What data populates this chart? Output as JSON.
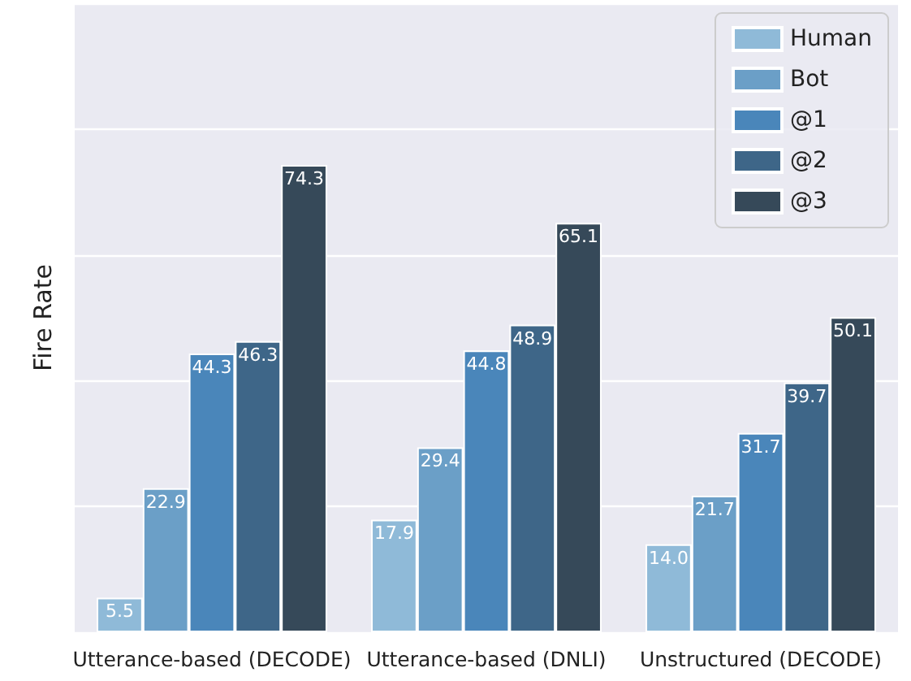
{
  "chart_data": {
    "type": "bar",
    "ylabel": "Fire Rate",
    "categories": [
      "Utterance-based (DECODE)",
      "Utterance-based (DNLI)",
      "Unstructured (DECODE)"
    ],
    "series": [
      {
        "name": "Human",
        "color": "#8fbad8",
        "values": [
          5.5,
          17.9,
          14.0
        ],
        "value_labels": [
          "5.5",
          "17.9",
          "14.0"
        ]
      },
      {
        "name": "Bot",
        "color": "#6b9fc7",
        "values": [
          22.9,
          29.4,
          21.7
        ]
      },
      {
        "name": "@1",
        "color": "#4a86ba",
        "values": [
          44.3,
          44.8,
          31.7
        ]
      },
      {
        "name": "@2",
        "color": "#3e6688",
        "values": [
          46.3,
          48.9,
          39.7
        ]
      },
      {
        "name": "@3",
        "color": "#364959",
        "values": [
          74.3,
          65.1,
          50.1
        ]
      }
    ],
    "ylim": [
      0,
      100
    ],
    "yticks": [
      {
        "value": 0,
        "label": null
      },
      {
        "value": 20,
        "label": null
      },
      {
        "value": 40,
        "label": null
      },
      {
        "value": 60,
        "label": null
      },
      {
        "value": 80,
        "label": null
      },
      {
        "value": 100,
        "label": null
      }
    ],
    "tick_labels": "x",
    "grid": "y",
    "legend": "top right",
    "data_labels": true
  }
}
